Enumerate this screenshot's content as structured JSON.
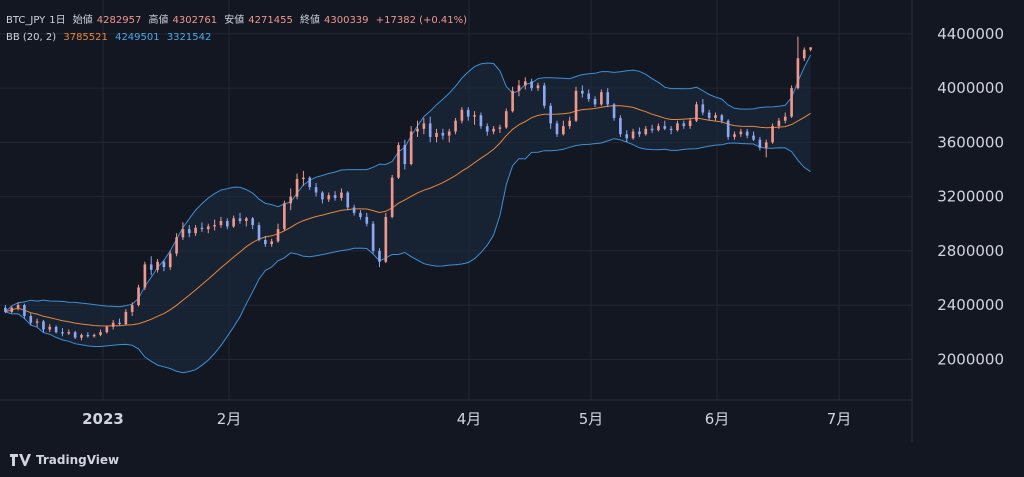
{
  "legend": {
    "symbol": "BTC_JPY",
    "interval": "1日",
    "open_label": "始値",
    "open": "4282957",
    "high_label": "高値",
    "high": "4302761",
    "low_label": "安値",
    "low": "4271455",
    "close_label": "終値",
    "close": "4300339",
    "change": "+17382 (+0.41%)",
    "bb_label": "BB (20, 2)",
    "bb_mid": "3785521",
    "bb_upper": "4249501",
    "bb_lower": "3321542"
  },
  "brand": "TradingView",
  "colors": {
    "background": "#131722",
    "grid": "#232733",
    "up": "#f0978d",
    "down": "#8ea7f3",
    "bb_mid": "#e8873a",
    "bb_band": "#3d8fd6",
    "bb_fill": "#1c2b40",
    "text": "#d1d4dc"
  },
  "chart_data": {
    "type": "candlestick",
    "title": "BTC_JPY",
    "x_ticks": [
      {
        "label": "2023",
        "day": 0
      },
      {
        "label": "2月",
        "day": 31
      },
      {
        "label": "4月",
        "day": 90
      },
      {
        "label": "5月",
        "day": 120
      },
      {
        "label": "6月",
        "day": 151
      },
      {
        "label": "7月",
        "day": 181
      }
    ],
    "y_ticks": [
      "4400000",
      "4000000",
      "3600000",
      "3200000",
      "2800000",
      "2400000",
      "2000000"
    ],
    "ylim": [
      1700000,
      4650000
    ],
    "first_day_offset": -24,
    "candles_ohlc": [
      [
        2380000,
        2400000,
        2340000,
        2350000
      ],
      [
        2350000,
        2390000,
        2340000,
        2380000
      ],
      [
        2380000,
        2420000,
        2360000,
        2400000
      ],
      [
        2400000,
        2410000,
        2300000,
        2320000
      ],
      [
        2320000,
        2340000,
        2250000,
        2270000
      ],
      [
        2270000,
        2300000,
        2240000,
        2280000
      ],
      [
        2280000,
        2290000,
        2200000,
        2220000
      ],
      [
        2220000,
        2260000,
        2200000,
        2240000
      ],
      [
        2240000,
        2250000,
        2190000,
        2200000
      ],
      [
        2200000,
        2230000,
        2170000,
        2190000
      ],
      [
        2190000,
        2220000,
        2180000,
        2200000
      ],
      [
        2200000,
        2210000,
        2150000,
        2160000
      ],
      [
        2160000,
        2190000,
        2140000,
        2180000
      ],
      [
        2180000,
        2200000,
        2160000,
        2170000
      ],
      [
        2170000,
        2190000,
        2160000,
        2180000
      ],
      [
        2180000,
        2220000,
        2170000,
        2200000
      ],
      [
        2200000,
        2250000,
        2190000,
        2240000
      ],
      [
        2240000,
        2290000,
        2220000,
        2270000
      ],
      [
        2270000,
        2300000,
        2250000,
        2260000
      ],
      [
        2260000,
        2370000,
        2250000,
        2350000
      ],
      [
        2350000,
        2420000,
        2320000,
        2400000
      ],
      [
        2400000,
        2550000,
        2390000,
        2530000
      ],
      [
        2530000,
        2720000,
        2510000,
        2700000
      ],
      [
        2700000,
        2760000,
        2620000,
        2660000
      ],
      [
        2660000,
        2740000,
        2640000,
        2720000
      ],
      [
        2720000,
        2730000,
        2650000,
        2680000
      ],
      [
        2680000,
        2800000,
        2660000,
        2780000
      ],
      [
        2780000,
        2930000,
        2760000,
        2900000
      ],
      [
        2900000,
        3010000,
        2880000,
        2960000
      ],
      [
        2960000,
        2990000,
        2900000,
        2930000
      ],
      [
        2930000,
        2990000,
        2910000,
        2970000
      ],
      [
        2970000,
        3010000,
        2940000,
        2960000
      ],
      [
        2960000,
        3000000,
        2930000,
        2980000
      ],
      [
        2980000,
        3030000,
        2950000,
        2990000
      ],
      [
        2990000,
        3050000,
        2970000,
        3020000
      ],
      [
        3020000,
        3040000,
        2960000,
        2980000
      ],
      [
        2980000,
        3060000,
        2970000,
        3040000
      ],
      [
        3040000,
        3080000,
        3000000,
        3020000
      ],
      [
        3020000,
        3050000,
        2980000,
        3040000
      ],
      [
        3040000,
        3050000,
        2960000,
        2990000
      ],
      [
        2990000,
        3010000,
        2870000,
        2880000
      ],
      [
        2880000,
        2910000,
        2830000,
        2850000
      ],
      [
        2850000,
        2890000,
        2830000,
        2870000
      ],
      [
        2870000,
        3000000,
        2860000,
        2960000
      ],
      [
        2960000,
        3170000,
        2950000,
        3150000
      ],
      [
        3150000,
        3260000,
        3100000,
        3200000
      ],
      [
        3200000,
        3370000,
        3180000,
        3330000
      ],
      [
        3330000,
        3390000,
        3280000,
        3340000
      ],
      [
        3340000,
        3350000,
        3250000,
        3270000
      ],
      [
        3270000,
        3300000,
        3200000,
        3230000
      ],
      [
        3230000,
        3240000,
        3150000,
        3180000
      ],
      [
        3180000,
        3230000,
        3160000,
        3210000
      ],
      [
        3210000,
        3240000,
        3170000,
        3190000
      ],
      [
        3190000,
        3260000,
        3170000,
        3230000
      ],
      [
        3230000,
        3240000,
        3100000,
        3120000
      ],
      [
        3120000,
        3140000,
        3060000,
        3080000
      ],
      [
        3080000,
        3100000,
        3030000,
        3050000
      ],
      [
        3050000,
        3080000,
        2980000,
        3000000
      ],
      [
        3000000,
        3020000,
        2780000,
        2800000
      ],
      [
        2800000,
        2820000,
        2680000,
        2720000
      ],
      [
        2720000,
        3080000,
        2710000,
        3050000
      ],
      [
        3050000,
        3360000,
        3040000,
        3340000
      ],
      [
        3340000,
        3600000,
        3330000,
        3580000
      ],
      [
        3580000,
        3620000,
        3400000,
        3440000
      ],
      [
        3440000,
        3720000,
        3430000,
        3680000
      ],
      [
        3680000,
        3760000,
        3640000,
        3700000
      ],
      [
        3700000,
        3780000,
        3660000,
        3740000
      ],
      [
        3740000,
        3790000,
        3600000,
        3640000
      ],
      [
        3640000,
        3700000,
        3600000,
        3670000
      ],
      [
        3670000,
        3700000,
        3620000,
        3650000
      ],
      [
        3650000,
        3700000,
        3600000,
        3680000
      ],
      [
        3680000,
        3780000,
        3660000,
        3760000
      ],
      [
        3760000,
        3860000,
        3740000,
        3840000
      ],
      [
        3840000,
        3860000,
        3760000,
        3790000
      ],
      [
        3790000,
        3830000,
        3730000,
        3800000
      ],
      [
        3800000,
        3820000,
        3700000,
        3720000
      ],
      [
        3720000,
        3740000,
        3650000,
        3680000
      ],
      [
        3680000,
        3720000,
        3660000,
        3700000
      ],
      [
        3700000,
        3730000,
        3670000,
        3710000
      ],
      [
        3710000,
        3850000,
        3700000,
        3830000
      ],
      [
        3830000,
        4010000,
        3820000,
        3980000
      ],
      [
        3980000,
        4060000,
        3940000,
        4020000
      ],
      [
        4020000,
        4080000,
        3990000,
        4050000
      ],
      [
        4050000,
        4070000,
        3980000,
        4000000
      ],
      [
        4000000,
        4040000,
        3980000,
        4020000
      ],
      [
        4020000,
        4040000,
        3850000,
        3870000
      ],
      [
        3870000,
        3890000,
        3700000,
        3740000
      ],
      [
        3740000,
        3760000,
        3640000,
        3660000
      ],
      [
        3660000,
        3760000,
        3650000,
        3720000
      ],
      [
        3720000,
        3790000,
        3700000,
        3760000
      ],
      [
        3760000,
        4010000,
        3750000,
        3980000
      ],
      [
        3980000,
        4020000,
        3930000,
        3960000
      ],
      [
        3960000,
        3990000,
        3900000,
        3920000
      ],
      [
        3920000,
        3940000,
        3860000,
        3880000
      ],
      [
        3880000,
        3990000,
        3870000,
        3970000
      ],
      [
        3970000,
        4000000,
        3860000,
        3880000
      ],
      [
        3880000,
        3890000,
        3760000,
        3780000
      ],
      [
        3780000,
        3800000,
        3640000,
        3660000
      ],
      [
        3660000,
        3690000,
        3600000,
        3630000
      ],
      [
        3630000,
        3700000,
        3620000,
        3680000
      ],
      [
        3680000,
        3710000,
        3640000,
        3660000
      ],
      [
        3660000,
        3720000,
        3650000,
        3700000
      ],
      [
        3700000,
        3730000,
        3670000,
        3690000
      ],
      [
        3690000,
        3740000,
        3680000,
        3720000
      ],
      [
        3720000,
        3760000,
        3690000,
        3700000
      ],
      [
        3700000,
        3720000,
        3660000,
        3690000
      ],
      [
        3690000,
        3760000,
        3680000,
        3740000
      ],
      [
        3740000,
        3760000,
        3700000,
        3720000
      ],
      [
        3720000,
        3780000,
        3700000,
        3760000
      ],
      [
        3760000,
        3900000,
        3750000,
        3880000
      ],
      [
        3880000,
        3920000,
        3800000,
        3820000
      ],
      [
        3820000,
        3840000,
        3760000,
        3780000
      ],
      [
        3780000,
        3820000,
        3760000,
        3800000
      ],
      [
        3800000,
        3810000,
        3740000,
        3760000
      ],
      [
        3760000,
        3770000,
        3620000,
        3640000
      ],
      [
        3640000,
        3680000,
        3620000,
        3660000
      ],
      [
        3660000,
        3700000,
        3640000,
        3680000
      ],
      [
        3680000,
        3700000,
        3630000,
        3650000
      ],
      [
        3650000,
        3680000,
        3610000,
        3620000
      ],
      [
        3620000,
        3640000,
        3540000,
        3560000
      ],
      [
        3560000,
        3620000,
        3490000,
        3600000
      ],
      [
        3600000,
        3740000,
        3590000,
        3720000
      ],
      [
        3720000,
        3780000,
        3700000,
        3760000
      ],
      [
        3760000,
        3820000,
        3740000,
        3790000
      ],
      [
        3790000,
        4020000,
        3780000,
        4000000
      ],
      [
        4000000,
        4380000,
        3990000,
        4220000
      ],
      [
        4220000,
        4300000,
        4200000,
        4283000
      ],
      [
        4282957,
        4302761,
        4271455,
        4300339
      ]
    ],
    "bollinger": {
      "period": 20,
      "stddev": 2,
      "last_mid": 3785521,
      "last_upper": 4249501,
      "last_lower": 3321542
    }
  }
}
